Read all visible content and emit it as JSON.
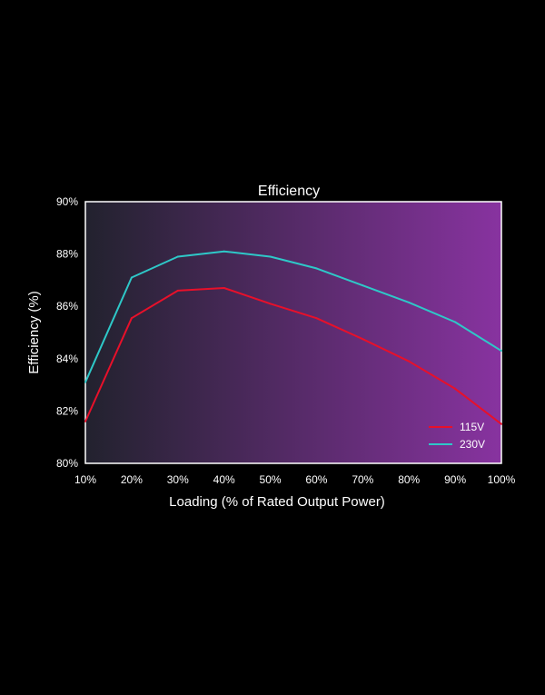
{
  "chart_data": {
    "type": "line",
    "title": "Efficiency",
    "xlabel": "Loading (% of Rated Output Power)",
    "ylabel": "Efficiency (%)",
    "x": [
      10,
      20,
      30,
      40,
      50,
      60,
      70,
      80,
      90,
      100
    ],
    "x_tick_labels": [
      "10%",
      "20%",
      "30%",
      "40%",
      "50%",
      "60%",
      "70%",
      "80%",
      "90%",
      "100%"
    ],
    "y_ticks": [
      80,
      82,
      84,
      86,
      88,
      90
    ],
    "y_tick_labels": [
      "80%",
      "82%",
      "84%",
      "86%",
      "88%",
      "90%"
    ],
    "xlim": [
      10,
      100
    ],
    "ylim": [
      80,
      90
    ],
    "grid": false,
    "legend_position": "bottom-right",
    "background_gradient": [
      "#22222e",
      "#8833a0"
    ],
    "series": [
      {
        "name": "115V",
        "color": "#e8102a",
        "x": [
          10,
          20,
          30,
          40,
          50,
          60,
          70,
          80,
          90,
          100
        ],
        "values": [
          81.6,
          85.55,
          86.6,
          86.7,
          86.1,
          85.55,
          84.75,
          83.9,
          82.85,
          81.5
        ]
      },
      {
        "name": "230V",
        "color": "#2ec8c8",
        "x": [
          10,
          20,
          30,
          40,
          50,
          60,
          70,
          80,
          90,
          100
        ],
        "values": [
          83.1,
          87.1,
          87.9,
          88.1,
          87.9,
          87.45,
          86.8,
          86.15,
          85.4,
          84.3
        ]
      }
    ]
  }
}
